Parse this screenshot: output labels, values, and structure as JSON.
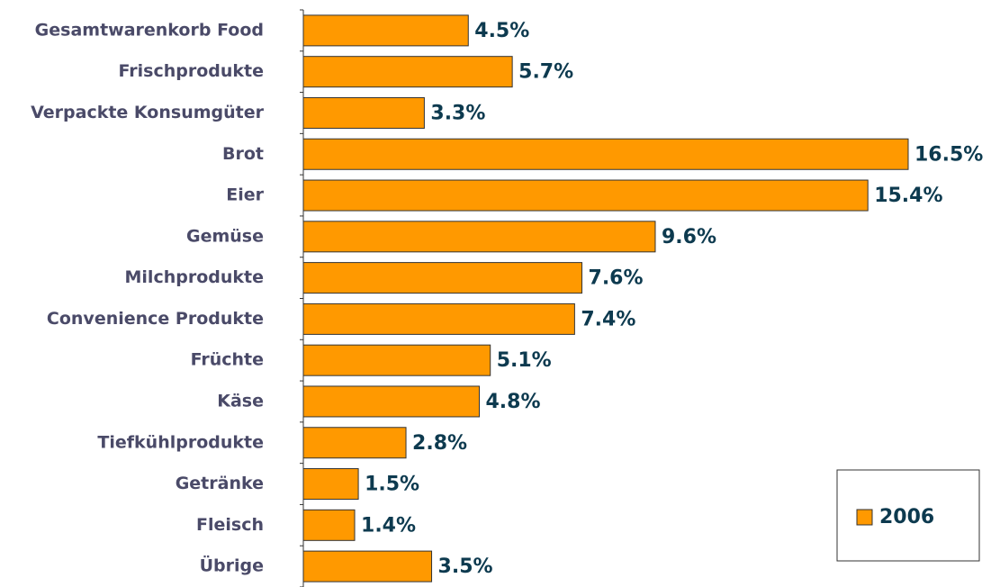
{
  "chart_data": {
    "type": "bar",
    "orientation": "horizontal",
    "categories": [
      "Gesamtwarenkorb Food",
      "Frischprodukte",
      "Verpackte Konsumgüter",
      "Brot",
      "Eier",
      "Gemüse",
      "Milchprodukte",
      "Convenience Produkte",
      "Früchte",
      "Käse",
      "Tiefkühlprodukte",
      "Getränke",
      "Fleisch",
      "Übrige"
    ],
    "series": [
      {
        "name": "2006",
        "color": "#ff9900",
        "values": [
          4.5,
          5.7,
          3.3,
          16.5,
          15.4,
          9.6,
          7.6,
          7.4,
          5.1,
          4.8,
          2.8,
          1.5,
          1.4,
          3.5
        ],
        "value_labels": [
          "4.5%",
          "5.7%",
          "3.3%",
          "16.5%",
          "15.4%",
          "9.6%",
          "7.6%",
          "7.4%",
          "5.1%",
          "4.8%",
          "2.8%",
          "1.5%",
          "1.4%",
          "3.5%"
        ]
      }
    ],
    "legend": "bottom-right"
  }
}
